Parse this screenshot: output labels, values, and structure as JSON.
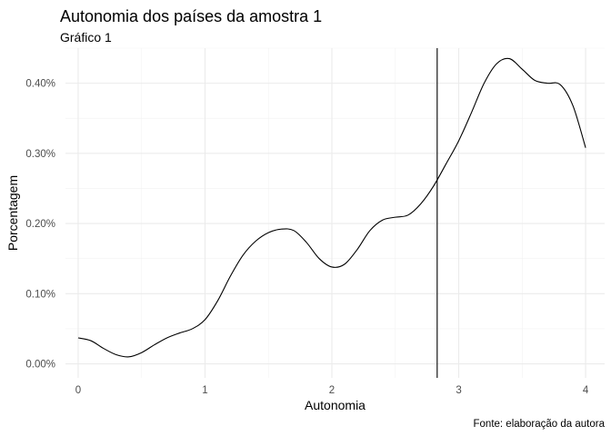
{
  "chart_data": {
    "type": "line",
    "title": "Autonomia dos países da amostra 1",
    "subtitle": "Gráfico 1",
    "xlabel": "Autonomia",
    "ylabel": "Porcentagem",
    "caption": "Fonte: elaboração da autora",
    "xlim": [
      -0.1,
      4.15
    ],
    "ylim": [
      -0.0002,
      0.0045
    ],
    "x_ticks": [
      0,
      1,
      2,
      3,
      4
    ],
    "x_tick_labels": [
      "0",
      "1",
      "2",
      "3",
      "4"
    ],
    "y_ticks": [
      0.0,
      0.001,
      0.002,
      0.003,
      0.004
    ],
    "y_tick_labels": [
      "0.00%",
      "0.10%",
      "0.20%",
      "0.30%",
      "0.40%"
    ],
    "grid": true,
    "vline_x": 2.83,
    "series": [
      {
        "x": [
          0.0,
          0.1,
          0.2,
          0.3,
          0.4,
          0.5,
          0.6,
          0.7,
          0.8,
          0.9,
          1.0,
          1.1,
          1.2,
          1.3,
          1.4,
          1.5,
          1.6,
          1.7,
          1.8,
          1.9,
          2.0,
          2.1,
          2.2,
          2.3,
          2.4,
          2.5,
          2.6,
          2.7,
          2.8,
          2.9,
          3.0,
          3.1,
          3.2,
          3.3,
          3.4,
          3.5,
          3.6,
          3.7,
          3.8,
          3.9,
          4.0
        ],
        "y": [
          0.00037,
          0.00033,
          0.00022,
          0.00013,
          0.0001,
          0.00016,
          0.00027,
          0.00037,
          0.00044,
          0.0005,
          0.00063,
          0.0009,
          0.00125,
          0.00155,
          0.00175,
          0.00187,
          0.00192,
          0.0019,
          0.00173,
          0.0015,
          0.00138,
          0.00142,
          0.00163,
          0.0019,
          0.00205,
          0.00209,
          0.00212,
          0.00228,
          0.00253,
          0.00285,
          0.00318,
          0.00358,
          0.004,
          0.00428,
          0.00435,
          0.0042,
          0.00404,
          0.004,
          0.00398,
          0.00368,
          0.00308
        ]
      }
    ]
  }
}
